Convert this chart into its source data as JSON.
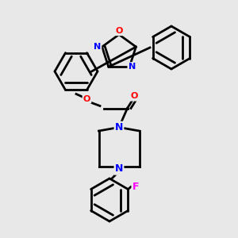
{
  "background_color": "#e8e8e8",
  "bond_color": "#000000",
  "bond_width": 2.0,
  "atom_colors": {
    "N": "#0000ff",
    "O": "#ff0000",
    "F": "#ff00ff",
    "C": "#000000"
  },
  "title": "",
  "figsize": [
    3.0,
    3.0
  ],
  "dpi": 100
}
